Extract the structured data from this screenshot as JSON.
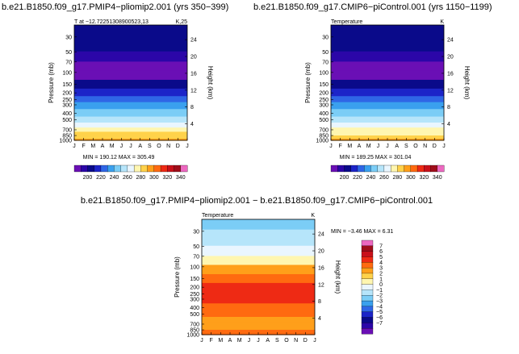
{
  "chart_data": [
    {
      "type": "heatmap",
      "title": "b.e21.B1850.f09_g17.PMIP4−pliomip2.001  (yrs  350−399)",
      "subtitle_left": "T  at  −12.72251308900523,13",
      "subtitle_right": "K,25",
      "xlabel": "",
      "ylabel": "Pressure  (mb)",
      "ylabel_right": "Height  (km)",
      "stats": "MIN = 190.12  MAX = 305.49",
      "min": 190.12,
      "max": 305.49,
      "x_ticks": [
        "J",
        "F",
        "M",
        "A",
        "M",
        "J",
        "J",
        "A",
        "S",
        "O",
        "N",
        "D",
        "J"
      ],
      "pressure_ticks": [
        "30",
        "50",
        "70",
        "100",
        "150",
        "200",
        "250",
        "300",
        "400",
        "500",
        "700",
        "850",
        "1000"
      ],
      "height_ticks": [
        "24",
        "20",
        "16",
        "12",
        "8",
        "4"
      ],
      "colorbar_labels": [
        "200",
        "220",
        "240",
        "260",
        "280",
        "300",
        "320",
        "340"
      ],
      "levels": [
        190,
        200,
        210,
        220,
        230,
        240,
        250,
        260,
        270,
        280,
        290,
        300,
        310,
        320,
        330,
        340,
        350
      ],
      "bands": [
        {
          "pressure": 20,
          "value": 214
        },
        {
          "pressure": 40,
          "value": 212
        },
        {
          "pressure": 60,
          "value": 205
        },
        {
          "pressure": 80,
          "value": 198
        },
        {
          "pressure": 110,
          "value": 196
        },
        {
          "pressure": 150,
          "value": 214
        },
        {
          "pressure": 200,
          "value": 224
        },
        {
          "pressure": 250,
          "value": 236
        },
        {
          "pressure": 300,
          "value": 244
        },
        {
          "pressure": 400,
          "value": 256
        },
        {
          "pressure": 500,
          "value": 266
        },
        {
          "pressure": 600,
          "value": 274
        },
        {
          "pressure": 700,
          "value": 282
        },
        {
          "pressure": 800,
          "value": 290
        },
        {
          "pressure": 900,
          "value": 298
        },
        {
          "pressure": 1000,
          "value": 304
        }
      ]
    },
    {
      "type": "heatmap",
      "title": "b.e21.B1850.f09_g17.CMIP6−piControl.001  (yrs  1150−1199)",
      "subtitle_left": "Temperature",
      "subtitle_right": "K",
      "xlabel": "",
      "ylabel": "Pressure  (mb)",
      "ylabel_right": "Height  (km)",
      "stats": "MIN = 189.25  MAX = 301.04",
      "min": 189.25,
      "max": 301.04,
      "x_ticks": [
        "J",
        "F",
        "M",
        "A",
        "M",
        "J",
        "J",
        "A",
        "S",
        "O",
        "N",
        "D",
        "J"
      ],
      "pressure_ticks": [
        "30",
        "50",
        "70",
        "100",
        "150",
        "200",
        "250",
        "300",
        "400",
        "500",
        "700",
        "850",
        "1000"
      ],
      "height_ticks": [
        "24",
        "20",
        "16",
        "12",
        "8",
        "4"
      ],
      "colorbar_labels": [
        "200",
        "220",
        "240",
        "260",
        "280",
        "300",
        "320",
        "340"
      ],
      "levels": [
        190,
        200,
        210,
        220,
        230,
        240,
        250,
        260,
        270,
        280,
        290,
        300,
        310,
        320,
        330,
        340,
        350
      ],
      "bands": [
        {
          "pressure": 20,
          "value": 214
        },
        {
          "pressure": 40,
          "value": 212
        },
        {
          "pressure": 60,
          "value": 205
        },
        {
          "pressure": 80,
          "value": 197
        },
        {
          "pressure": 110,
          "value": 195
        },
        {
          "pressure": 150,
          "value": 212
        },
        {
          "pressure": 200,
          "value": 222
        },
        {
          "pressure": 250,
          "value": 234
        },
        {
          "pressure": 300,
          "value": 242
        },
        {
          "pressure": 400,
          "value": 254
        },
        {
          "pressure": 500,
          "value": 264
        },
        {
          "pressure": 600,
          "value": 272
        },
        {
          "pressure": 700,
          "value": 280
        },
        {
          "pressure": 800,
          "value": 288
        },
        {
          "pressure": 900,
          "value": 295
        },
        {
          "pressure": 1000,
          "value": 300
        }
      ]
    },
    {
      "type": "heatmap",
      "title": "b.e21.B1850.f09_g17.PMIP4−pliomip2.001  −  b.e21.B1850.f09_g17.CMIP6−piControl.001",
      "subtitle_left": "Temperature",
      "subtitle_right": "K",
      "xlabel": "",
      "ylabel": "Pressure  (mb)",
      "ylabel_right": "Height  (km)",
      "stats": "MIN =  −3.46  MAX =    6.31",
      "min": -3.46,
      "max": 6.31,
      "x_ticks": [
        "J",
        "F",
        "M",
        "A",
        "M",
        "J",
        "J",
        "A",
        "S",
        "O",
        "N",
        "D",
        "J"
      ],
      "pressure_ticks": [
        "30",
        "50",
        "70",
        "100",
        "150",
        "200",
        "250",
        "300",
        "400",
        "500",
        "700",
        "850",
        "1000"
      ],
      "height_ticks": [
        "24",
        "20",
        "16",
        "12",
        "8",
        "4"
      ],
      "colorbar_labels": [
        "7",
        "6",
        "5",
        "4",
        "3",
        "2",
        "1",
        "0",
        "−1",
        "−2",
        "−3",
        "−4",
        "−5",
        "−6",
        "−7"
      ],
      "levels": [
        -8,
        -7,
        -6,
        -5,
        -4,
        -3,
        -2,
        -1,
        0,
        1,
        2,
        3,
        4,
        5,
        6,
        7,
        8
      ],
      "bands": [
        {
          "pressure": 20,
          "value": -1.5
        },
        {
          "pressure": 40,
          "value": -0.8
        },
        {
          "pressure": 60,
          "value": 0.3
        },
        {
          "pressure": 80,
          "value": 1.8
        },
        {
          "pressure": 110,
          "value": 3.2
        },
        {
          "pressure": 150,
          "value": 4.3
        },
        {
          "pressure": 200,
          "value": 5.2
        },
        {
          "pressure": 250,
          "value": 5.4
        },
        {
          "pressure": 300,
          "value": 5.1
        },
        {
          "pressure": 400,
          "value": 4.6
        },
        {
          "pressure": 500,
          "value": 4.1
        },
        {
          "pressure": 600,
          "value": 3.8
        },
        {
          "pressure": 700,
          "value": 3.5
        },
        {
          "pressure": 800,
          "value": 3.6
        },
        {
          "pressure": 900,
          "value": 4.1
        },
        {
          "pressure": 1000,
          "value": 4.6
        }
      ]
    }
  ],
  "palette": [
    "#6a0fb5",
    "#2b06a8",
    "#0a0a8a",
    "#1c24c8",
    "#2f66e6",
    "#3aa0ee",
    "#7bcdf6",
    "#b6e5fa",
    "#eaf6ff",
    "#fff6b0",
    "#ffd24a",
    "#ff9f1a",
    "#ff6a10",
    "#ee2a14",
    "#c8101a",
    "#a00d1a",
    "#ec68c0"
  ]
}
